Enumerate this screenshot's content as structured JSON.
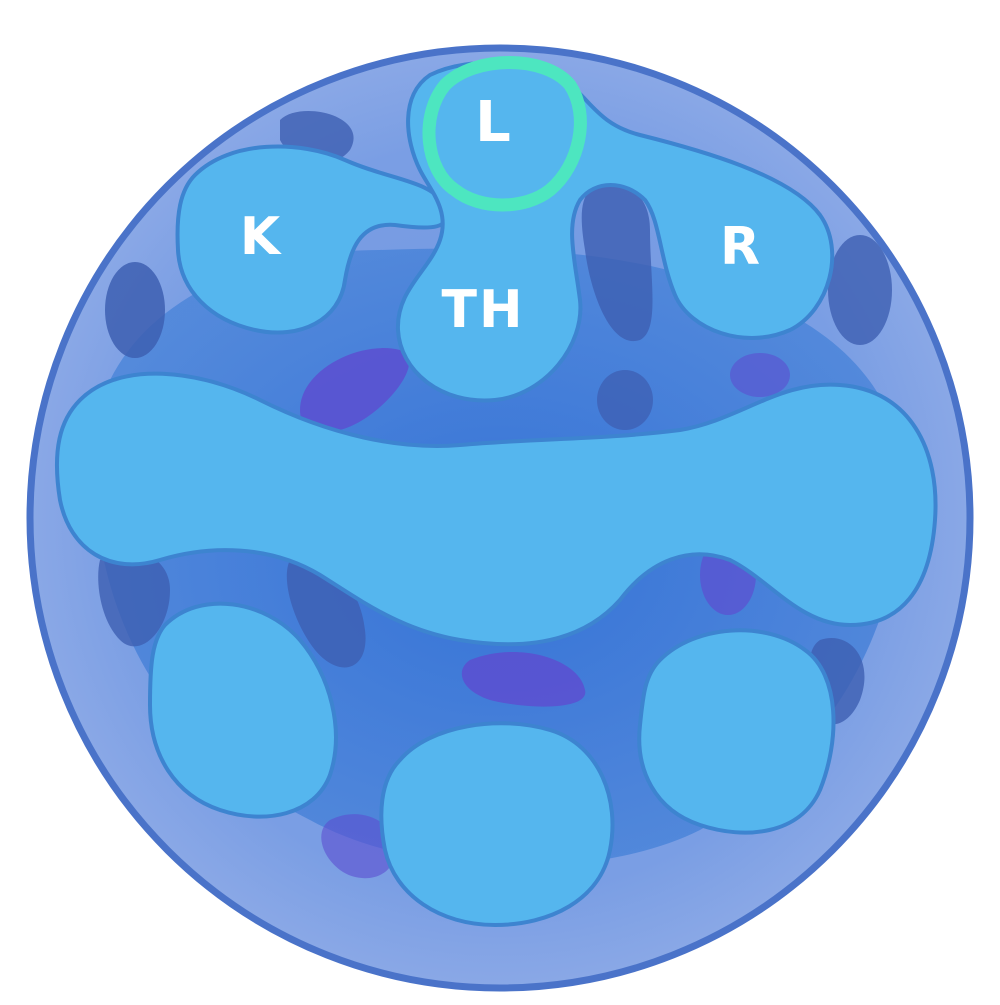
{
  "map": {
    "colors": {
      "outer_disc": "#7a9ee4",
      "outer_rim": "#4a73c9",
      "inner_field": "#3f7fd8",
      "pad": "#55b6ee",
      "pad_edge": "#3d84d0",
      "hole": "#3d5fb2",
      "hole_purple": "#5c4fd0",
      "selection_ring": "#4de6c0",
      "label": "#ffffff"
    },
    "pads": [
      {
        "id": "k",
        "label": "K",
        "selected": false
      },
      {
        "id": "l",
        "label": "L",
        "selected": true
      },
      {
        "id": "r",
        "label": "R",
        "selected": false
      },
      {
        "id": "th",
        "label": "TH",
        "selected": false
      },
      {
        "id": "middle-band",
        "label": "",
        "selected": false
      },
      {
        "id": "bottom-left",
        "label": "",
        "selected": false
      },
      {
        "id": "bottom-center",
        "label": "",
        "selected": false
      },
      {
        "id": "bottom-right",
        "label": "",
        "selected": false
      }
    ]
  }
}
